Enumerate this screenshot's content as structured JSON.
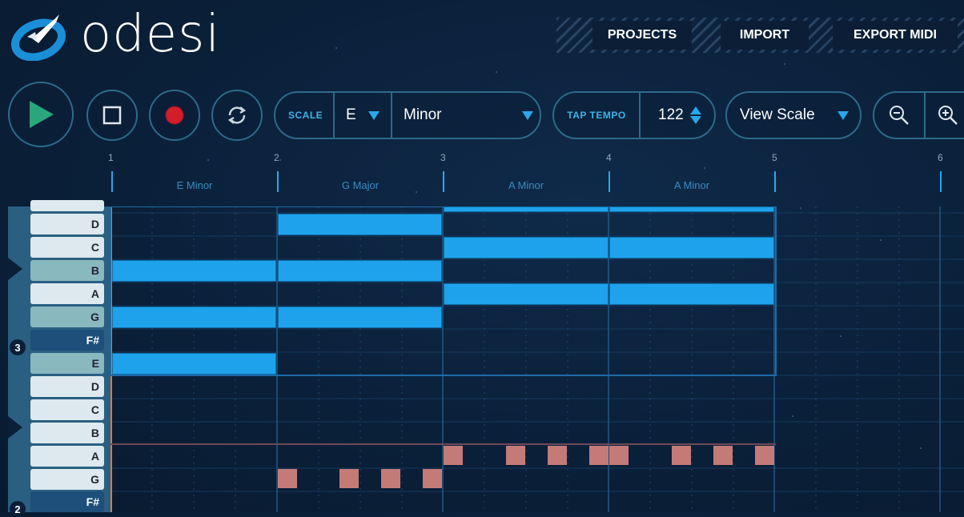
{
  "app": {
    "logo_text": "odesi"
  },
  "menu": {
    "projects": "PROJECTS",
    "import": "IMPORT",
    "export": "EXPORT MIDI"
  },
  "scale": {
    "label": "SCALE",
    "root": "E",
    "mode": "Minor"
  },
  "tempo": {
    "label": "TAP TEMPO",
    "value": "122"
  },
  "view": {
    "label": "View Scale"
  },
  "ruler": {
    "bars": [
      "1",
      "2",
      "3",
      "4",
      "5",
      "6"
    ]
  },
  "chords": [
    "E Minor",
    "G Major",
    "A Minor",
    "A Minor"
  ],
  "keys": [
    {
      "label": "D",
      "type": "white"
    },
    {
      "label": "C",
      "type": "white"
    },
    {
      "label": "B",
      "type": "teal"
    },
    {
      "label": "A",
      "type": "white"
    },
    {
      "label": "G",
      "type": "teal"
    },
    {
      "label": "F#",
      "type": "sharp"
    },
    {
      "label": "E",
      "type": "teal"
    },
    {
      "label": "D",
      "type": "white"
    },
    {
      "label": "C",
      "type": "white"
    },
    {
      "label": "B",
      "type": "white"
    },
    {
      "label": "A",
      "type": "white"
    },
    {
      "label": "G",
      "type": "white"
    },
    {
      "label": "F#",
      "type": "sharp"
    }
  ],
  "octaves": [
    "3",
    "2"
  ],
  "colors": {
    "accent": "#29a7ea",
    "note": "#1fa2ec",
    "bass": "#c47b78",
    "background": "#0a1f38"
  }
}
